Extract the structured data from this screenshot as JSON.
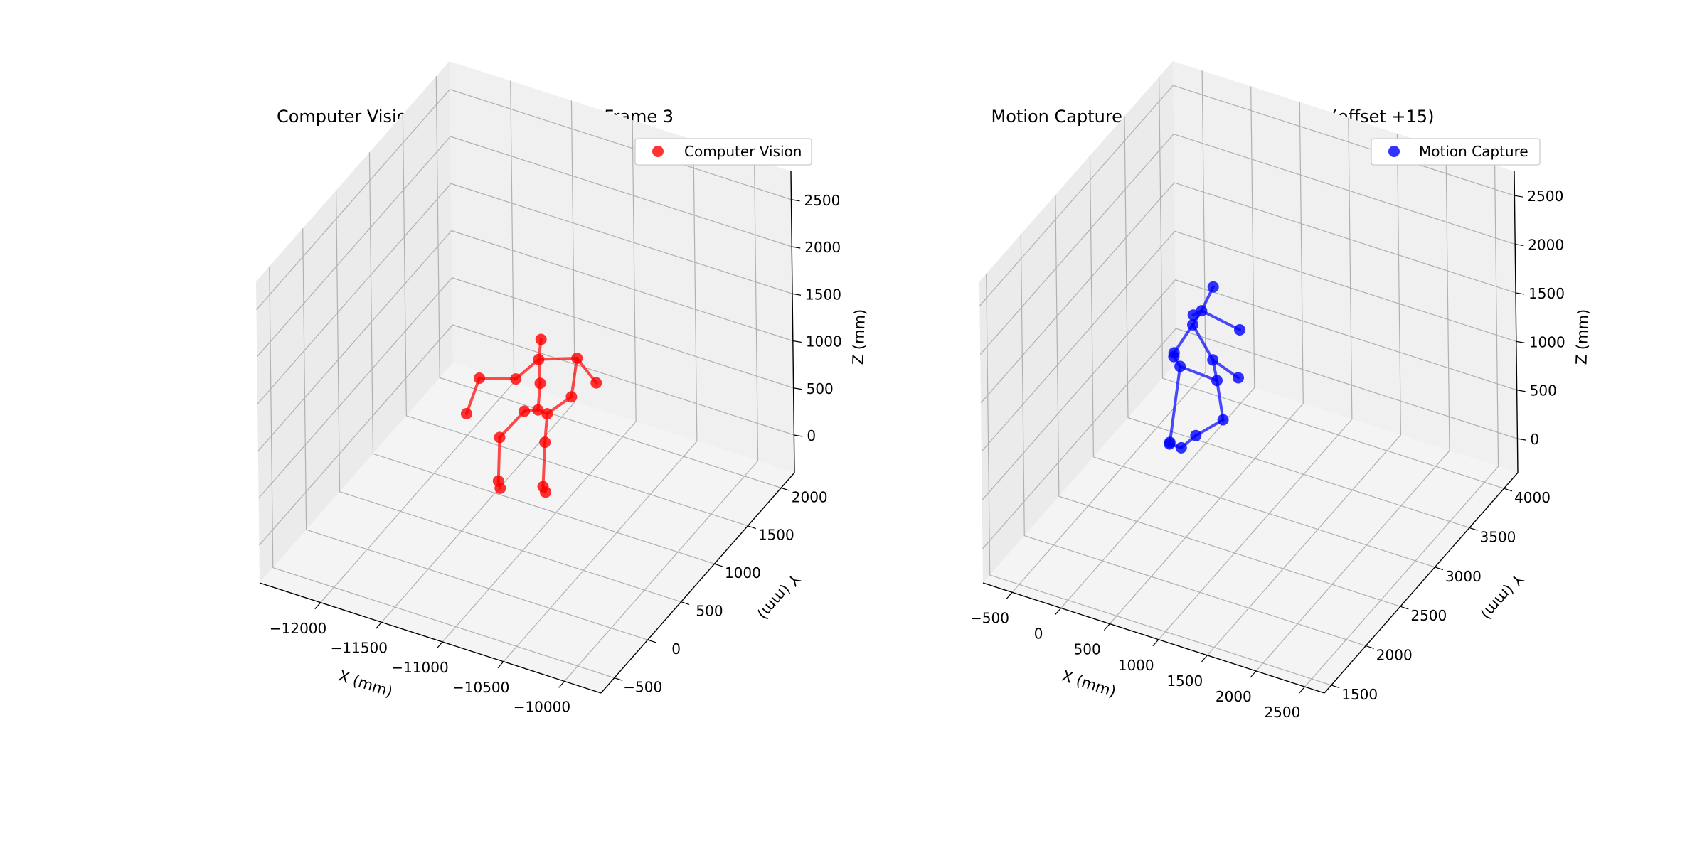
{
  "chart_data": [
    {
      "type": "scatter3d",
      "title": "Computer Vision Triangulation - Video Frame 3",
      "xlabel": "X (mm)",
      "ylabel": "Y (mm)",
      "zlabel": "Z (mm)",
      "xticks": [
        -12000,
        -11500,
        -11000,
        -10500,
        -10000
      ],
      "yticks": [
        -500,
        0,
        500,
        1000,
        1500,
        2000
      ],
      "zticks": [
        0,
        500,
        1000,
        1500,
        2000,
        2500
      ],
      "xlim": [
        -12500,
        -9700
      ],
      "ylim": [
        -700,
        2200
      ],
      "zlim": [
        -400,
        2800
      ],
      "grid": true,
      "legend_position": "top-right",
      "series": [
        {
          "name": "Computer Vision",
          "color": "#ff0000",
          "points": [
            [
              -11050,
              900,
              1500
            ],
            [
              -11060,
              880,
              1300
            ],
            [
              -11150,
              700,
              1200
            ],
            [
              -11350,
              520,
              1270
            ],
            [
              -11420,
              450,
              920
            ],
            [
              -10800,
              980,
              1340
            ],
            [
              -10700,
              1080,
              1040
            ],
            [
              -10850,
              980,
              910
            ],
            [
              -11050,
              880,
              1050
            ],
            [
              -11060,
              860,
              780
            ],
            [
              -11150,
              820,
              760
            ],
            [
              -10990,
              870,
              760
            ],
            [
              -11300,
              720,
              500
            ],
            [
              -11000,
              850,
              470
            ],
            [
              -11320,
              730,
              20
            ],
            [
              -11300,
              720,
              -40
            ],
            [
              -11020,
              850,
              -10
            ],
            [
              -11000,
              850,
              -60
            ]
          ],
          "edges": [
            [
              0,
              1
            ],
            [
              1,
              2
            ],
            [
              2,
              3
            ],
            [
              3,
              4
            ],
            [
              1,
              5
            ],
            [
              5,
              6
            ],
            [
              1,
              8
            ],
            [
              8,
              9
            ],
            [
              9,
              10
            ],
            [
              9,
              11
            ],
            [
              10,
              12
            ],
            [
              12,
              14
            ],
            [
              14,
              15
            ],
            [
              11,
              13
            ],
            [
              13,
              16
            ],
            [
              16,
              17
            ],
            [
              11,
              7
            ],
            [
              7,
              5
            ]
          ]
        }
      ]
    },
    {
      "type": "scatter3d",
      "title": "Motion Capture Ground Truth - Frame 0 (offset +15)",
      "xlabel": "X (mm)",
      "ylabel": "Y (mm)",
      "zlabel": "Z (mm)",
      "xticks": [
        -500,
        0,
        500,
        1000,
        1500,
        2000,
        2500
      ],
      "yticks": [
        1500,
        2000,
        2500,
        3000,
        3500,
        4000
      ],
      "zticks": [
        0,
        500,
        1000,
        1500,
        2000,
        2500
      ],
      "xlim": [
        -800,
        2700
      ],
      "ylim": [
        1400,
        4200
      ],
      "zlim": [
        -350,
        2750
      ],
      "grid": true,
      "legend_position": "top-right",
      "series": [
        {
          "name": "Motion Capture",
          "color": "#0000ff",
          "points": [
            [
              380,
              3100,
              1700
            ],
            [
              330,
              3000,
              1520
            ],
            [
              280,
              2950,
              1500
            ],
            [
              310,
              2900,
              1450
            ],
            [
              720,
              3000,
              1450
            ],
            [
              150,
              2850,
              1150
            ],
            [
              140,
              2860,
              1100
            ],
            [
              440,
              3000,
              1050
            ],
            [
              210,
              2850,
              1030
            ],
            [
              700,
              3000,
              950
            ],
            [
              480,
              3000,
              850
            ],
            [
              610,
              2900,
              570
            ],
            [
              240,
              2650,
              420
            ],
            [
              200,
              2700,
              350
            ],
            [
              320,
              2700,
              350
            ],
            [
              400,
              2800,
              420
            ]
          ],
          "edges": [
            [
              0,
              1
            ],
            [
              1,
              2
            ],
            [
              1,
              3
            ],
            [
              1,
              4
            ],
            [
              3,
              5
            ],
            [
              5,
              6
            ],
            [
              6,
              8
            ],
            [
              3,
              7
            ],
            [
              7,
              9
            ],
            [
              8,
              10
            ],
            [
              7,
              10
            ],
            [
              10,
              11
            ],
            [
              11,
              15
            ],
            [
              15,
              14
            ],
            [
              14,
              13
            ],
            [
              13,
              12
            ],
            [
              12,
              8
            ]
          ]
        }
      ]
    }
  ]
}
